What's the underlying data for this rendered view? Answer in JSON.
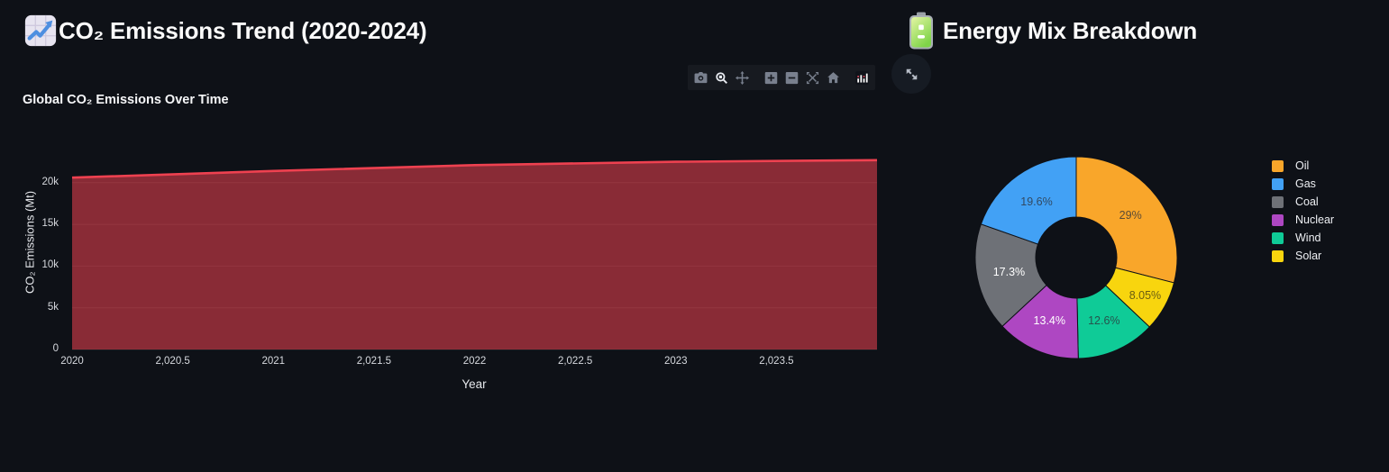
{
  "page": {
    "background": "#0e1117"
  },
  "left_panel": {
    "header": {
      "icon": "chart-increasing-icon",
      "title": "CO₂ Emissions Trend (2020-2024)"
    }
  },
  "right_panel": {
    "header": {
      "icon": "battery-icon",
      "title": "Energy Mix Breakdown"
    }
  },
  "modebar": {
    "icons": [
      "camera-icon",
      "zoom-icon",
      "pan-icon",
      "zoom-in-icon",
      "zoom-out-icon",
      "autoscale-icon",
      "home-icon",
      "plotly-logo-icon"
    ],
    "active_icon": "zoom-icon"
  },
  "fullscreen": {
    "icon": "expand-arrows-icon"
  },
  "chart_data": [
    {
      "id": "emissions-area",
      "type": "area",
      "title": "Global CO₂ Emissions Over Time",
      "xlabel": "Year",
      "ylabel": "CO₂ Emissions (Mt)",
      "x": [
        2020,
        2021,
        2022,
        2023,
        2024
      ],
      "values": [
        20600,
        21400,
        22100,
        22500,
        22700
      ],
      "xlim": [
        2020,
        2024
      ],
      "ylim": [
        0,
        25700
      ],
      "x_ticks": [
        {
          "v": 2020,
          "label": "2020"
        },
        {
          "v": 2020.5,
          "label": "2,020.5"
        },
        {
          "v": 2021,
          "label": "2021"
        },
        {
          "v": 2021.5,
          "label": "2,021.5"
        },
        {
          "v": 2022,
          "label": "2022"
        },
        {
          "v": 2022.5,
          "label": "2,022.5"
        },
        {
          "v": 2023,
          "label": "2023"
        },
        {
          "v": 2023.5,
          "label": "2,023.5"
        }
      ],
      "y_ticks": [
        {
          "v": 0,
          "label": "0"
        },
        {
          "v": 5000,
          "label": "5k"
        },
        {
          "v": 10000,
          "label": "10k"
        },
        {
          "v": 15000,
          "label": "15k"
        },
        {
          "v": 20000,
          "label": "20k"
        }
      ],
      "line_color": "#ee4150",
      "fill_color": "rgba(238,65,80,0.55)",
      "grid_color": "rgba(255,255,255,0.10)",
      "grid": true,
      "legend_position": "none"
    },
    {
      "id": "energy-pie",
      "type": "pie",
      "hole": 0.4,
      "slices": [
        {
          "label": "Oil",
          "value": 29,
          "pct_label": "29%",
          "color": "#f9a62a",
          "pct_text_color": "rgba(45,49,57,0.78)"
        },
        {
          "label": "Gas",
          "value": 19.6,
          "pct_label": "19.6%",
          "color": "#42a1f5",
          "pct_text_color": "rgba(45,49,57,0.78)"
        },
        {
          "label": "Coal",
          "value": 17.3,
          "pct_label": "17.3%",
          "color": "#6e7177",
          "pct_text_color": "#ffffff"
        },
        {
          "label": "Nuclear",
          "value": 13.4,
          "pct_label": "13.4%",
          "color": "#ae47c2",
          "pct_text_color": "#ffffff"
        },
        {
          "label": "Wind",
          "value": 12.6,
          "pct_label": "12.6%",
          "color": "#0fcb97",
          "pct_text_color": "rgba(45,49,57,0.78)"
        },
        {
          "label": "Solar",
          "value": 8.05,
          "pct_label": "8.05%",
          "color": "#f8d50e",
          "pct_text_color": "rgba(70,62,20,0.8)"
        }
      ],
      "draw_order_clockwise_from_top": [
        "Oil",
        "Solar",
        "Wind",
        "Nuclear",
        "Coal",
        "Gas"
      ],
      "legend_order": [
        "Oil",
        "Gas",
        "Coal",
        "Nuclear",
        "Wind",
        "Solar"
      ],
      "legend_position": "right"
    }
  ]
}
